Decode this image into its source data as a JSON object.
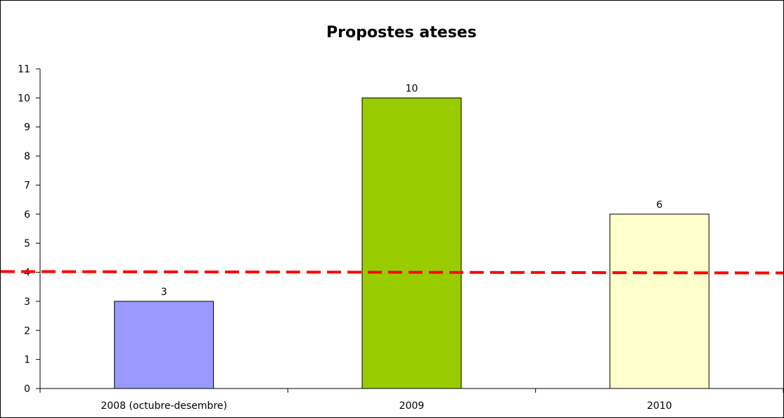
{
  "chart_data": {
    "type": "bar",
    "title": "Propostes ateses",
    "xlabel": "",
    "ylabel": "",
    "categories": [
      "2008 (octubre-desembre)",
      "2009",
      "2010"
    ],
    "values": [
      3,
      10,
      6
    ],
    "data_labels": [
      "3",
      "10",
      "6"
    ],
    "bar_colors": [
      "#9999ff",
      "#99cc00",
      "#ffffcc"
    ],
    "ylim": [
      0,
      11
    ],
    "yticks": [
      "0",
      "1",
      "2",
      "3",
      "4",
      "5",
      "6",
      "7",
      "8",
      "9",
      "10",
      "11"
    ],
    "grid": false,
    "legend": "none",
    "reference_line": {
      "value": 4,
      "color": "#ff0000",
      "style": "dashed"
    }
  }
}
